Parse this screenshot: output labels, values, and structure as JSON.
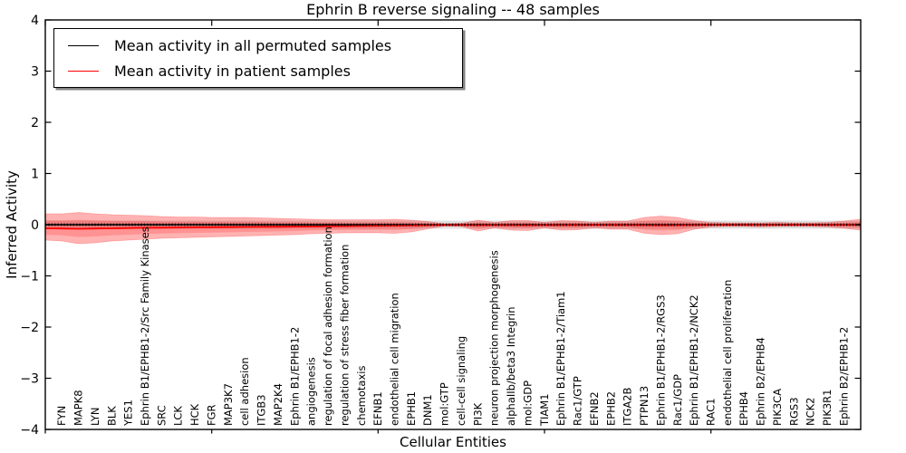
{
  "legend": {
    "entries": [
      {
        "label": "Mean activity in all permuted samples",
        "color": "#000000"
      },
      {
        "label": "Mean activity in patient samples",
        "color": "#ff0000"
      }
    ]
  },
  "chart_data": {
    "type": "line",
    "title": "Ephrin B reverse signaling -- 48 samples",
    "xlabel": "Cellular Entities",
    "ylabel": "Inferred Activity",
    "ylim": [
      -4,
      4
    ],
    "yticks": [
      4,
      3,
      2,
      1,
      0,
      -1,
      -2,
      -3,
      -4
    ],
    "xlim": [
      0,
      49
    ],
    "xticks": [
      0,
      10,
      20,
      30,
      40
    ],
    "grid": false,
    "legend_position": "upper left",
    "categories": [
      "FYN",
      "MAPK8",
      "LYN",
      "BLK",
      "YES1",
      "Ephrin B1/EPHB1-2/Src Family Kinases",
      "SRC",
      "LCK",
      "HCK",
      "FGR",
      "MAP3K7",
      "cell adhesion",
      "ITGB3",
      "MAP2K4",
      "Ephrin B1/EPHB1-2",
      "angiogenesis",
      "regulation of focal adhesion formation",
      "regulation of stress fiber formation",
      "chemotaxis",
      "EFNB1",
      "endothelial cell migration",
      "EPHB1",
      "DNM1",
      "mol:GTP",
      "cell-cell signaling",
      "PI3K",
      "neuron projection morphogenesis",
      "alphaIIb/beta3 Integrin",
      "mol:GDP",
      "TIAM1",
      "Ephrin B1/EPHB1-2/Tiam1",
      "Rac1/GTP",
      "EFNB2",
      "EPHB2",
      "ITGA2B",
      "PTPN13",
      "Ephrin B1/EPHB1-2/RGS3",
      "Rac1/GDP",
      "Ephrin B1/EPHB1-2/NCK2",
      "RAC1",
      "endothelial cell proliferation",
      "EPHB4",
      "Ephrin B2/EPHB4",
      "PIK3CA",
      "RGS3",
      "NCK2",
      "PIK3R1",
      "Ephrin B2/EPHB1-2"
    ],
    "series": [
      {
        "name": "Mean activity in all permuted samples",
        "color": "#000000",
        "linestyle": "solid with dotted overlay",
        "constant_value": 0
      },
      {
        "name": "Mean activity in patient samples",
        "color": "#ff0000",
        "linestyle": "solid",
        "edge_left_value": -0.07,
        "edge_right_value": 0.0,
        "values": [
          -0.075,
          -0.08,
          -0.075,
          -0.07,
          -0.065,
          -0.06,
          -0.058,
          -0.055,
          -0.052,
          -0.05,
          -0.048,
          -0.045,
          -0.042,
          -0.04,
          -0.038,
          -0.035,
          -0.03,
          -0.028,
          -0.025,
          -0.022,
          -0.02,
          -0.015,
          -0.01,
          -0.005,
          -0.005,
          -0.01,
          -0.005,
          -0.008,
          -0.01,
          -0.005,
          -0.008,
          -0.006,
          -0.004,
          -0.006,
          -0.006,
          -0.01,
          -0.012,
          -0.01,
          -0.005,
          -0.002,
          -0.002,
          -0.002,
          -0.003,
          -0.002,
          -0.002,
          -0.002,
          -0.003,
          -0.004
        ]
      }
    ],
    "bands": {
      "permuted": {
        "color": "#e0e0e0",
        "upper": 0.08,
        "lower": -0.08
      },
      "patient_outer": {
        "color": "#ff0000",
        "opacity": 0.3,
        "edge_left": {
          "upper": 0.212,
          "lower": -0.301
        },
        "edge_right": {
          "upper": 0.106,
          "lower": -0.106
        },
        "upper": [
          0.212,
          0.239,
          0.212,
          0.195,
          0.186,
          0.177,
          0.159,
          0.15,
          0.15,
          0.142,
          0.142,
          0.142,
          0.133,
          0.124,
          0.115,
          0.106,
          0.097,
          0.097,
          0.097,
          0.097,
          0.106,
          0.088,
          0.062,
          0.018,
          0.027,
          0.088,
          0.044,
          0.08,
          0.08,
          0.044,
          0.08,
          0.071,
          0.044,
          0.071,
          0.071,
          0.142,
          0.168,
          0.142,
          0.08,
          0.044,
          0.035,
          0.035,
          0.035,
          0.044,
          0.035,
          0.035,
          0.044,
          0.071
        ],
        "lower": [
          -0.319,
          -0.372,
          -0.354,
          -0.319,
          -0.301,
          -0.283,
          -0.265,
          -0.257,
          -0.248,
          -0.239,
          -0.23,
          -0.221,
          -0.212,
          -0.204,
          -0.195,
          -0.177,
          -0.168,
          -0.159,
          -0.159,
          -0.159,
          -0.168,
          -0.142,
          -0.08,
          -0.027,
          -0.035,
          -0.124,
          -0.062,
          -0.106,
          -0.115,
          -0.062,
          -0.106,
          -0.097,
          -0.062,
          -0.088,
          -0.088,
          -0.168,
          -0.195,
          -0.177,
          -0.088,
          -0.044,
          -0.035,
          -0.035,
          -0.044,
          -0.035,
          -0.035,
          -0.035,
          -0.044,
          -0.071
        ]
      },
      "patient_inner": {
        "color": "#ff0000",
        "opacity": 0.18,
        "scale_of_outer": 0.55
      }
    }
  }
}
